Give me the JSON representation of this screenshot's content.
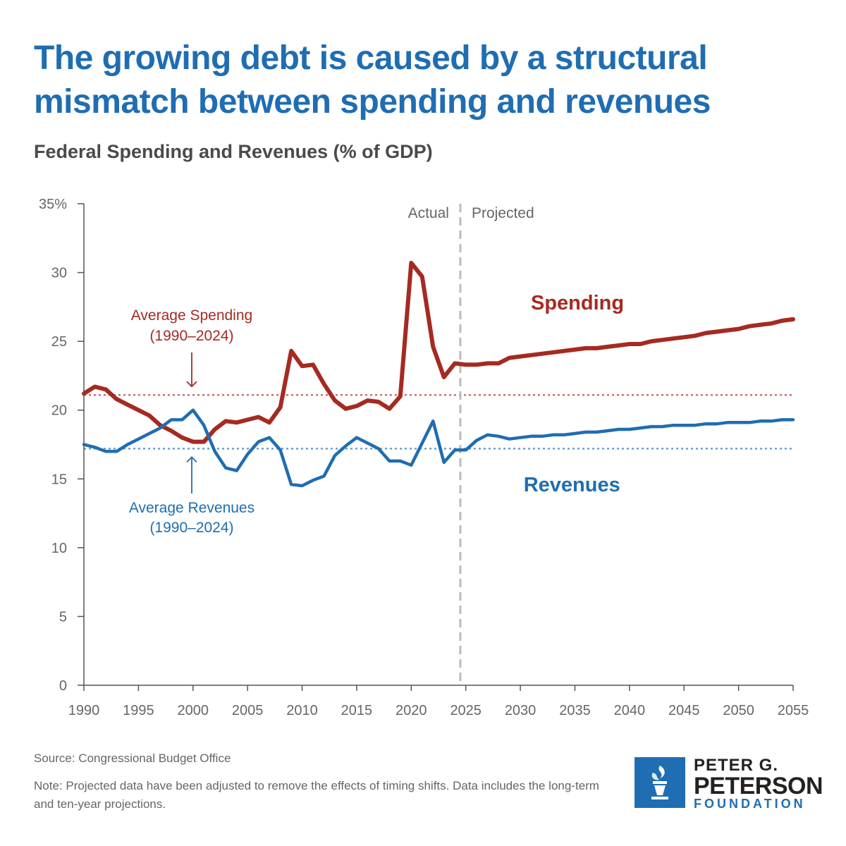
{
  "title": "The growing debt is caused by a structural mismatch between spending and revenues",
  "subtitle": "Federal Spending and Revenues (% of GDP)",
  "source": "Source: Congressional Budget Office",
  "note": "Note: Projected data have been adjusted to remove the effects of timing shifts. Data includes the long-term and ten-year projections.",
  "logo": {
    "line1": "PETER G.",
    "line2": "PETERSON",
    "line3": "FOUNDATION"
  },
  "colors": {
    "spending": "#a52a22",
    "revenues": "#1f6db2",
    "divider": "#bbbbbb",
    "axis": "#555555",
    "text": "#666666"
  },
  "chart_data": {
    "type": "line",
    "title": "Federal Spending and Revenues (% of GDP)",
    "xlabel": "",
    "ylabel": "",
    "xlim": [
      1990,
      2055
    ],
    "ylim": [
      0,
      35
    ],
    "x_ticks": [
      1990,
      1995,
      2000,
      2005,
      2010,
      2015,
      2020,
      2025,
      2030,
      2035,
      2040,
      2045,
      2050,
      2055
    ],
    "y_ticks": [
      0,
      5,
      10,
      15,
      20,
      25,
      30,
      35
    ],
    "y_tick_labels": [
      "0",
      "5",
      "10",
      "15",
      "20",
      "25",
      "30",
      "35%"
    ],
    "divider": {
      "x": 2024.5,
      "left_label": "Actual",
      "right_label": "Projected"
    },
    "x": [
      1990,
      1991,
      1992,
      1993,
      1994,
      1995,
      1996,
      1997,
      1998,
      1999,
      2000,
      2001,
      2002,
      2003,
      2004,
      2005,
      2006,
      2007,
      2008,
      2009,
      2010,
      2011,
      2012,
      2013,
      2014,
      2015,
      2016,
      2017,
      2018,
      2019,
      2020,
      2021,
      2022,
      2023,
      2024,
      2025,
      2026,
      2027,
      2028,
      2029,
      2030,
      2031,
      2032,
      2033,
      2034,
      2035,
      2036,
      2037,
      2038,
      2039,
      2040,
      2041,
      2042,
      2043,
      2044,
      2045,
      2046,
      2047,
      2048,
      2049,
      2050,
      2051,
      2052,
      2053,
      2054,
      2055
    ],
    "series": [
      {
        "name": "Spending",
        "label": "Spending",
        "values": [
          21.2,
          21.7,
          21.5,
          20.8,
          20.4,
          20.0,
          19.6,
          18.9,
          18.5,
          18.0,
          17.7,
          17.7,
          18.6,
          19.2,
          19.1,
          19.3,
          19.5,
          19.1,
          20.2,
          24.3,
          23.2,
          23.3,
          21.9,
          20.7,
          20.1,
          20.3,
          20.7,
          20.6,
          20.1,
          21.0,
          30.7,
          29.7,
          24.6,
          22.4,
          23.4,
          23.3,
          23.3,
          23.4,
          23.4,
          23.8,
          23.9,
          24.0,
          24.1,
          24.2,
          24.3,
          24.4,
          24.5,
          24.5,
          24.6,
          24.7,
          24.8,
          24.8,
          25.0,
          25.1,
          25.2,
          25.3,
          25.4,
          25.6,
          25.7,
          25.8,
          25.9,
          26.1,
          26.2,
          26.3,
          26.5,
          26.6
        ]
      },
      {
        "name": "Revenues",
        "label": "Revenues",
        "values": [
          17.5,
          17.3,
          17.0,
          17.0,
          17.5,
          17.9,
          18.3,
          18.7,
          19.3,
          19.3,
          20.0,
          18.9,
          17.0,
          15.8,
          15.6,
          16.8,
          17.7,
          18.0,
          17.1,
          14.6,
          14.5,
          14.9,
          15.2,
          16.7,
          17.4,
          18.0,
          17.6,
          17.2,
          16.3,
          16.3,
          16.0,
          17.6,
          19.2,
          16.2,
          17.1,
          17.1,
          17.8,
          18.2,
          18.1,
          17.9,
          18.0,
          18.1,
          18.1,
          18.2,
          18.2,
          18.3,
          18.4,
          18.4,
          18.5,
          18.6,
          18.6,
          18.7,
          18.8,
          18.8,
          18.9,
          18.9,
          18.9,
          19.0,
          19.0,
          19.1,
          19.1,
          19.1,
          19.2,
          19.2,
          19.3,
          19.3
        ]
      }
    ],
    "averages": [
      {
        "name": "Average Spending",
        "line1": "Average Spending",
        "line2": "(1990–2024)",
        "value": 21.1
      },
      {
        "name": "Average Revenues",
        "line1": "Average Revenues",
        "line2": "(1990–2024)",
        "value": 17.2
      }
    ]
  }
}
